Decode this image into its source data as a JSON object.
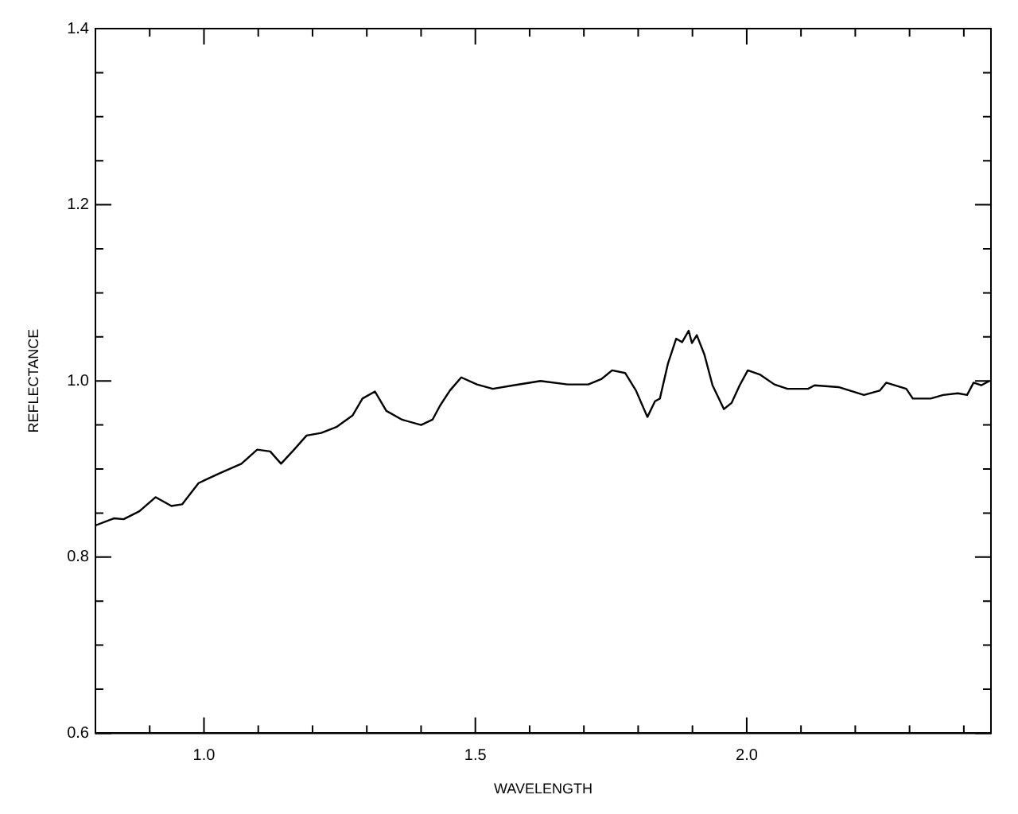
{
  "chart_data": {
    "type": "line",
    "xlabel": "WAVELENGTH",
    "ylabel": "REFLECTANCE",
    "x": [
      0.8,
      0.834,
      0.852,
      0.881,
      0.911,
      0.94,
      0.96,
      0.99,
      1.028,
      1.069,
      1.098,
      1.122,
      1.142,
      1.166,
      1.189,
      1.216,
      1.245,
      1.274,
      1.292,
      1.315,
      1.336,
      1.365,
      1.4,
      1.421,
      1.435,
      1.453,
      1.474,
      1.503,
      1.532,
      1.57,
      1.62,
      1.67,
      1.708,
      1.732,
      1.752,
      1.776,
      1.796,
      1.817,
      1.831,
      1.84,
      1.855,
      1.87,
      1.881,
      1.893,
      1.899,
      1.908,
      1.922,
      1.937,
      1.958,
      1.972,
      1.987,
      2.002,
      2.025,
      2.051,
      2.075,
      2.113,
      2.125,
      2.169,
      2.216,
      2.245,
      2.257,
      2.294,
      2.306,
      2.339,
      2.362,
      2.389,
      2.406,
      2.418,
      2.432,
      2.447
    ],
    "series": [
      {
        "color": "#000000",
        "values": [
          0.836,
          0.844,
          0.843,
          0.852,
          0.868,
          0.858,
          0.86,
          0.884,
          0.895,
          0.906,
          0.922,
          0.92,
          0.906,
          0.922,
          0.938,
          0.941,
          0.948,
          0.961,
          0.98,
          0.988,
          0.966,
          0.956,
          0.95,
          0.956,
          0.972,
          0.989,
          1.004,
          0.996,
          0.991,
          0.995,
          1.0,
          0.996,
          0.996,
          1.002,
          1.012,
          1.009,
          0.989,
          0.959,
          0.977,
          0.98,
          1.02,
          1.048,
          1.044,
          1.057,
          1.043,
          1.052,
          1.03,
          0.995,
          0.968,
          0.975,
          0.995,
          1.012,
          1.007,
          0.996,
          0.991,
          0.991,
          0.995,
          0.993,
          0.984,
          0.989,
          0.998,
          0.991,
          0.98,
          0.98,
          0.984,
          0.986,
          0.984,
          0.998,
          0.995,
          1.0
        ]
      }
    ],
    "xlim": [
      0.8,
      2.45
    ],
    "xticks": [
      {
        "value": 0.9,
        "label": null
      },
      {
        "value": 1,
        "label": "1.0"
      },
      {
        "value": 1.1,
        "label": null
      },
      {
        "value": 1.2,
        "label": null
      },
      {
        "value": 1.3,
        "label": null
      },
      {
        "value": 1.4,
        "label": null
      },
      1.5,
      {
        "value": 1.6,
        "label": null
      },
      {
        "value": 1.7,
        "label": null
      },
      {
        "value": 1.8,
        "label": null
      },
      {
        "value": 1.9,
        "label": null
      },
      {
        "value": 2,
        "label": "2.0"
      },
      {
        "value": 2.1,
        "label": null
      },
      {
        "value": 2.2,
        "label": null
      },
      {
        "value": 2.3,
        "label": null
      },
      {
        "value": 2.4,
        "label": null
      }
    ],
    "ylim": [
      0.6,
      1.4
    ],
    "yticks": [
      0.6,
      {
        "value": 0.65,
        "label": null
      },
      {
        "value": 0.7,
        "label": null
      },
      {
        "value": 0.75,
        "label": null
      },
      0.8,
      {
        "value": 0.85,
        "label": null
      },
      {
        "value": 0.9,
        "label": null
      },
      {
        "value": 0.95,
        "label": null
      },
      {
        "value": 1,
        "label": "1.0"
      },
      {
        "value": 1.05,
        "label": null
      },
      {
        "value": 1.1,
        "label": null
      },
      {
        "value": 1.15,
        "label": null
      },
      1.2,
      {
        "value": 1.25,
        "label": null
      },
      {
        "value": 1.3,
        "label": null
      },
      {
        "value": 1.35,
        "label": null
      },
      1.4
    ],
    "grid": false,
    "legend": false,
    "marker": "none",
    "line_style": "solid"
  }
}
